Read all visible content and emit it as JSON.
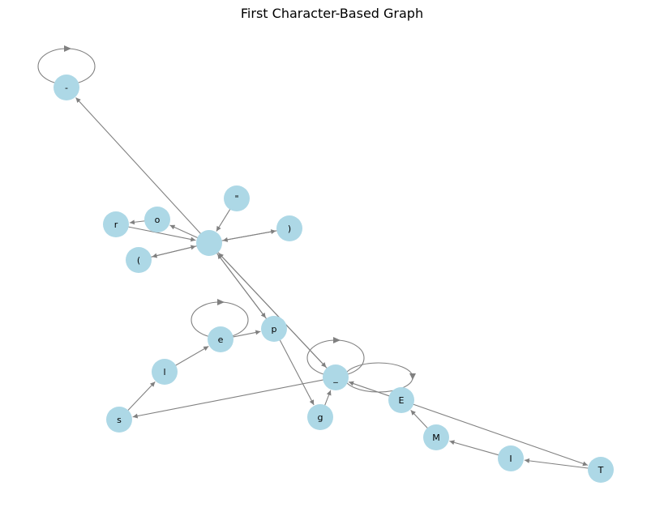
{
  "title": "First Character-Based Graph",
  "colors": {
    "node_fill": "#add8e6",
    "edge": "#808080",
    "label": "#000000"
  },
  "nodes": [
    {
      "id": "dash",
      "label": "-"
    },
    {
      "id": "quote",
      "label": "\""
    },
    {
      "id": "o",
      "label": "o"
    },
    {
      "id": "r",
      "label": "r"
    },
    {
      "id": "close",
      "label": ")"
    },
    {
      "id": "space",
      "label": ""
    },
    {
      "id": "open",
      "label": "("
    },
    {
      "id": "e",
      "label": "e"
    },
    {
      "id": "p",
      "label": "p"
    },
    {
      "id": "l",
      "label": "l"
    },
    {
      "id": "under",
      "label": "_"
    },
    {
      "id": "E",
      "label": "E"
    },
    {
      "id": "s",
      "label": "s"
    },
    {
      "id": "g",
      "label": "g"
    },
    {
      "id": "M",
      "label": "M"
    },
    {
      "id": "I",
      "label": "I"
    },
    {
      "id": "T",
      "label": "T"
    }
  ],
  "edges": [
    {
      "from": "space",
      "to": "dash"
    },
    {
      "from": "quote",
      "to": "space"
    },
    {
      "from": "space",
      "to": "o"
    },
    {
      "from": "o",
      "to": "r"
    },
    {
      "from": "r",
      "to": "space"
    },
    {
      "from": "space",
      "to": "close"
    },
    {
      "from": "close",
      "to": "space"
    },
    {
      "from": "space",
      "to": "open"
    },
    {
      "from": "open",
      "to": "space"
    },
    {
      "from": "space",
      "to": "p"
    },
    {
      "from": "p",
      "to": "space"
    },
    {
      "from": "space",
      "to": "under"
    },
    {
      "from": "under",
      "to": "space"
    },
    {
      "from": "s",
      "to": "l"
    },
    {
      "from": "l",
      "to": "e"
    },
    {
      "from": "e",
      "to": "p"
    },
    {
      "from": "p",
      "to": "g"
    },
    {
      "from": "g",
      "to": "under"
    },
    {
      "from": "under",
      "to": "s"
    },
    {
      "from": "E",
      "to": "under"
    },
    {
      "from": "M",
      "to": "E"
    },
    {
      "from": "I",
      "to": "M"
    },
    {
      "from": "T",
      "to": "I"
    },
    {
      "from": "E",
      "to": "T"
    }
  ],
  "self_loops": [
    "dash",
    "e",
    "under",
    "under"
  ]
}
